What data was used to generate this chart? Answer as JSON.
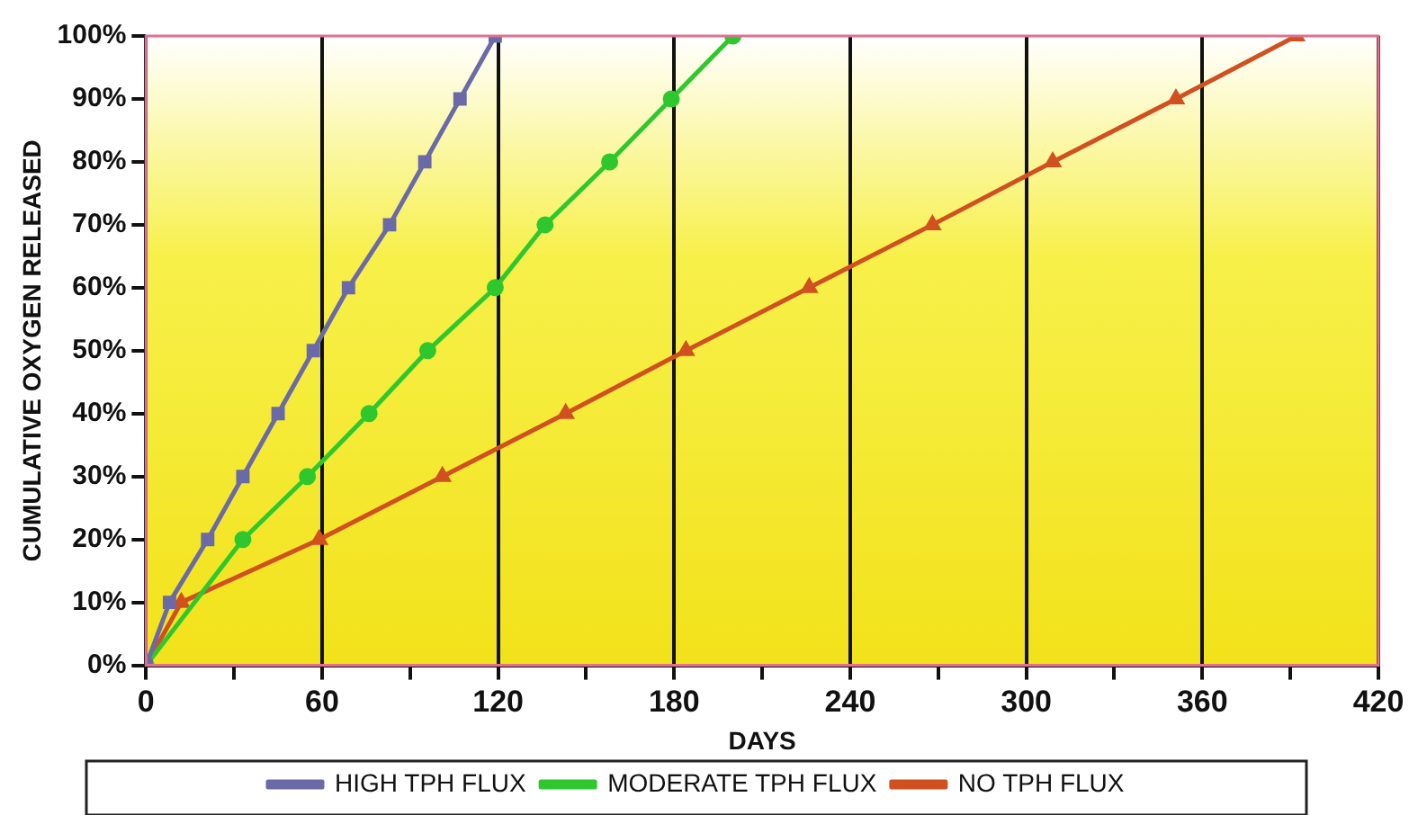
{
  "chart_data": {
    "type": "line",
    "xlabel": "DAYS",
    "ylabel": "CUMULATIVE OXYGEN RELEASED",
    "xlim": [
      0,
      420
    ],
    "xticks": [
      0,
      {
        "value": 30,
        "label": null
      },
      60,
      {
        "value": 90,
        "label": null
      },
      120,
      {
        "value": 150,
        "label": null
      },
      180,
      {
        "value": 210,
        "label": null
      },
      240,
      {
        "value": 270,
        "label": null
      },
      300,
      {
        "value": 330,
        "label": null
      },
      360,
      {
        "value": 390,
        "label": null
      },
      420
    ],
    "ylim": [
      0,
      100
    ],
    "yticks": [
      {
        "value": 0,
        "label": "0%"
      },
      {
        "value": 10,
        "label": "10%"
      },
      {
        "value": 20,
        "label": "20%"
      },
      {
        "value": 30,
        "label": "30%"
      },
      {
        "value": 40,
        "label": "40%"
      },
      {
        "value": 50,
        "label": "50%"
      },
      {
        "value": 60,
        "label": "60%"
      },
      {
        "value": 70,
        "label": "70%"
      },
      {
        "value": 80,
        "label": "80%"
      },
      {
        "value": 90,
        "label": "90%"
      },
      {
        "value": 100,
        "label": "100%"
      }
    ],
    "grid": "x",
    "legend": "bottom",
    "line_style": "solid",
    "series": [
      {
        "name": "HIGH TPH FLUX",
        "color": "#6a6aa8",
        "marker": "square",
        "x": [
          0,
          8,
          21,
          33,
          45,
          57,
          69,
          83,
          95,
          107,
          119
        ],
        "values": [
          0,
          10,
          20,
          30,
          40,
          50,
          60,
          70,
          80,
          90,
          100
        ]
      },
      {
        "name": "MODERATE TPH FLUX",
        "color": "#2ec82e",
        "marker": "circle",
        "x": [
          0,
          8,
          33,
          55,
          76,
          96,
          119,
          136,
          158,
          179,
          200
        ],
        "values": [
          0,
          null,
          20,
          30,
          40,
          50,
          60,
          70,
          80,
          90,
          100
        ]
      },
      {
        "name": "NO TPH FLUX",
        "color": "#d05020",
        "marker": "triangle",
        "x": [
          0,
          12,
          59,
          101,
          143,
          184,
          226,
          268,
          309,
          351,
          392
        ],
        "values": [
          0,
          10,
          20,
          30,
          40,
          50,
          60,
          70,
          80,
          90,
          100
        ]
      }
    ]
  }
}
